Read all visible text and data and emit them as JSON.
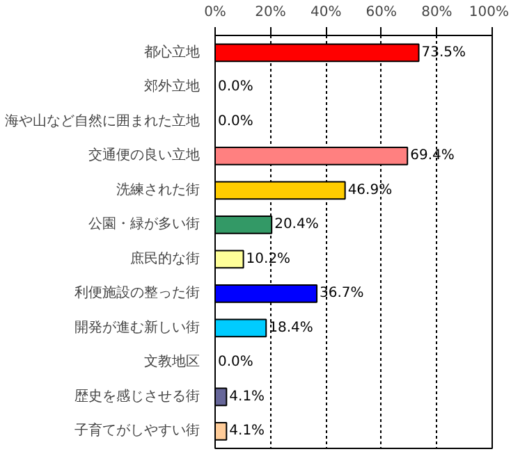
{
  "chart_data": {
    "type": "bar",
    "orientation": "horizontal",
    "categories": [
      "都心立地",
      "郊外立地",
      "海や山など自然に囲まれた立地",
      "交通便の良い立地",
      "洗練された街",
      "公園・緑が多い街",
      "庶民的な街",
      "利便施設の整った街",
      "開発が進む新しい街",
      "文教地区",
      "歴史を感じさせる街",
      "子育てがしやすい街"
    ],
    "values": [
      73.5,
      0.0,
      0.0,
      69.4,
      46.9,
      20.4,
      10.2,
      36.7,
      18.4,
      0.0,
      4.1,
      4.1
    ],
    "colors": [
      "#ff0000",
      null,
      null,
      "#ff8080",
      "#ffcc00",
      "#339966",
      "#ffff99",
      "#0000ff",
      "#00ccff",
      null,
      "#666699",
      "#ffcc99"
    ],
    "value_labels": [
      "73.5%",
      "0.0%",
      "0.0%",
      "69.4%",
      "46.9%",
      "20.4%",
      "10.2%",
      "36.7%",
      "18.4%",
      "0.0%",
      "4.1%",
      "4.1%"
    ],
    "xlim": [
      0,
      100
    ],
    "xticks": [
      {
        "value": 0,
        "label": "0%"
      },
      {
        "value": 20,
        "label": "20%"
      },
      {
        "value": 40,
        "label": "40%"
      },
      {
        "value": 60,
        "label": "60%"
      },
      {
        "value": 80,
        "label": "80%"
      },
      {
        "value": 100,
        "label": "100%"
      }
    ],
    "grid": "x"
  }
}
